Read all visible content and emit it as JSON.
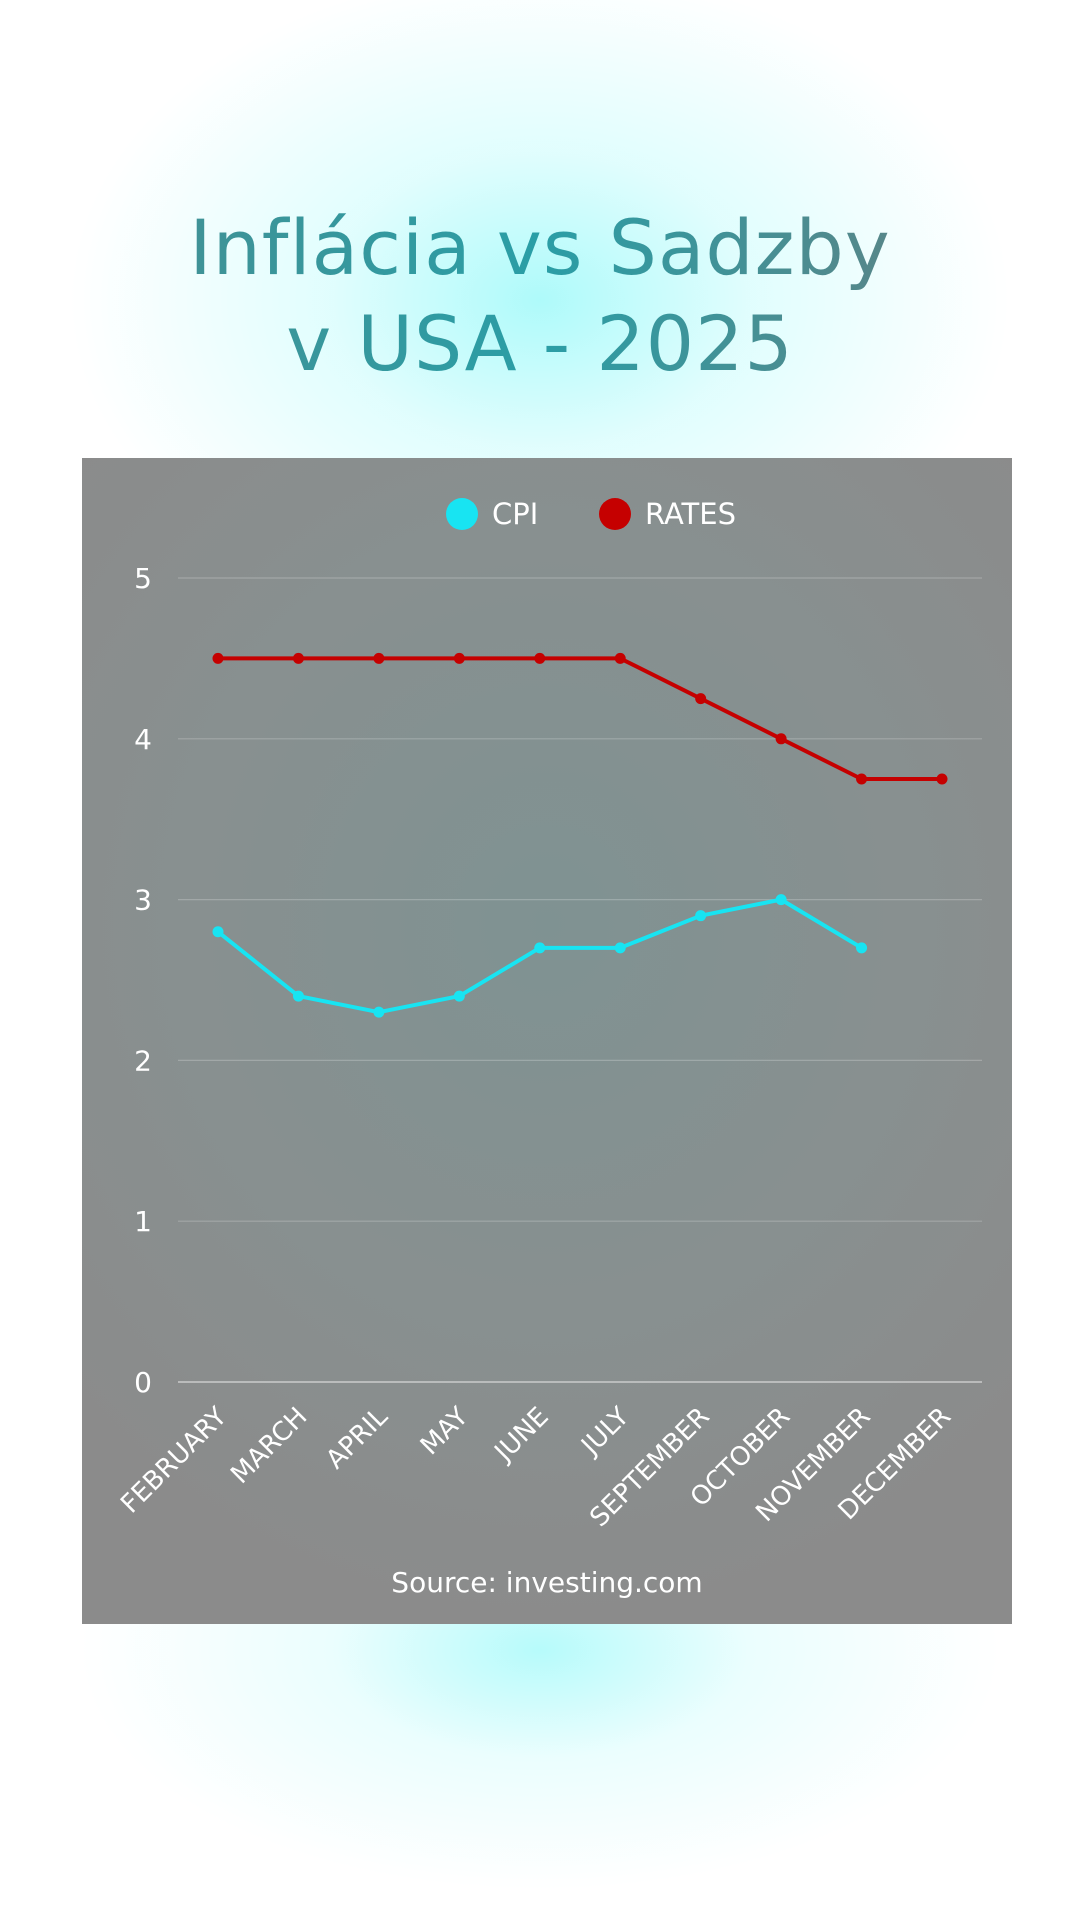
{
  "title": {
    "line1": "Inflácia vs Sadzby",
    "line2": "v USA - 2025"
  },
  "source": "Source: investing.com",
  "chart_data": {
    "type": "line",
    "categories": [
      "FEBRUARY",
      "MARCH",
      "APRIL",
      "MAY",
      "JUNE",
      "JULY",
      "SEPTEMBER",
      "OCTOBER",
      "NOVEMBER",
      "DECEMBER"
    ],
    "series": [
      {
        "name": "CPI",
        "color": "#18e4f2",
        "values": [
          2.8,
          2.4,
          2.3,
          2.4,
          2.7,
          2.7,
          2.9,
          3.0,
          2.7,
          null
        ]
      },
      {
        "name": "RATES",
        "color": "#c50000",
        "values": [
          4.5,
          4.5,
          4.5,
          4.5,
          4.5,
          4.5,
          4.25,
          4.0,
          3.75,
          3.75
        ]
      }
    ],
    "yticks": [
      0,
      1,
      2,
      3,
      4,
      5
    ],
    "ylim": [
      0,
      5
    ],
    "grid": true,
    "legend_position": "top-center"
  }
}
